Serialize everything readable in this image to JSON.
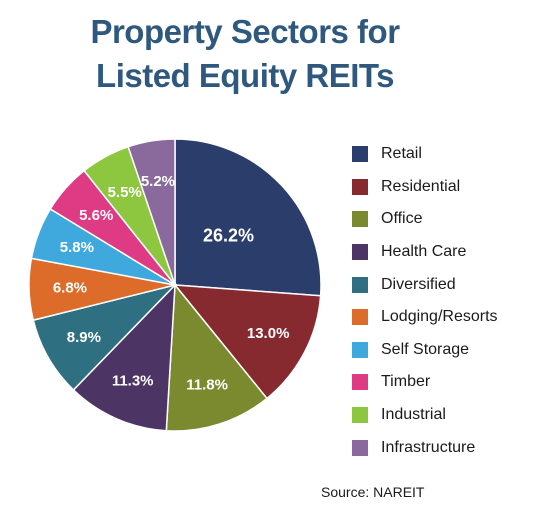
{
  "title_lines": [
    "Property Sectors for",
    "Listed Equity REITs"
  ],
  "source": "Source: NAREIT",
  "chart_data": {
    "type": "pie",
    "title": "Property Sectors for Listed Equity REITs",
    "legend_position": "right",
    "slices": [
      {
        "name": "Retail",
        "value": 26.2,
        "label": "26.2%",
        "color": "#2b3d6b"
      },
      {
        "name": "Residential",
        "value": 13.0,
        "label": "13.0%",
        "color": "#862a30"
      },
      {
        "name": "Office",
        "value": 11.8,
        "label": "11.8%",
        "color": "#7b8a2f"
      },
      {
        "name": "Health Care",
        "value": 11.3,
        "label": "11.3%",
        "color": "#4c3564"
      },
      {
        "name": "Diversified",
        "value": 8.9,
        "label": "8.9%",
        "color": "#2f6f82"
      },
      {
        "name": "Lodging/Resorts",
        "value": 6.8,
        "label": "6.8%",
        "color": "#dd6c2b"
      },
      {
        "name": "Self Storage",
        "value": 5.8,
        "label": "5.8%",
        "color": "#3fa9dd"
      },
      {
        "name": "Timber",
        "value": 5.6,
        "label": "5.6%",
        "color": "#de3b84"
      },
      {
        "name": "Industrial",
        "value": 5.5,
        "label": "5.5%",
        "color": "#8dc63f"
      },
      {
        "name": "Infrastructure",
        "value": 5.2,
        "label": "5.2%",
        "color": "#8a6a9c"
      }
    ]
  }
}
